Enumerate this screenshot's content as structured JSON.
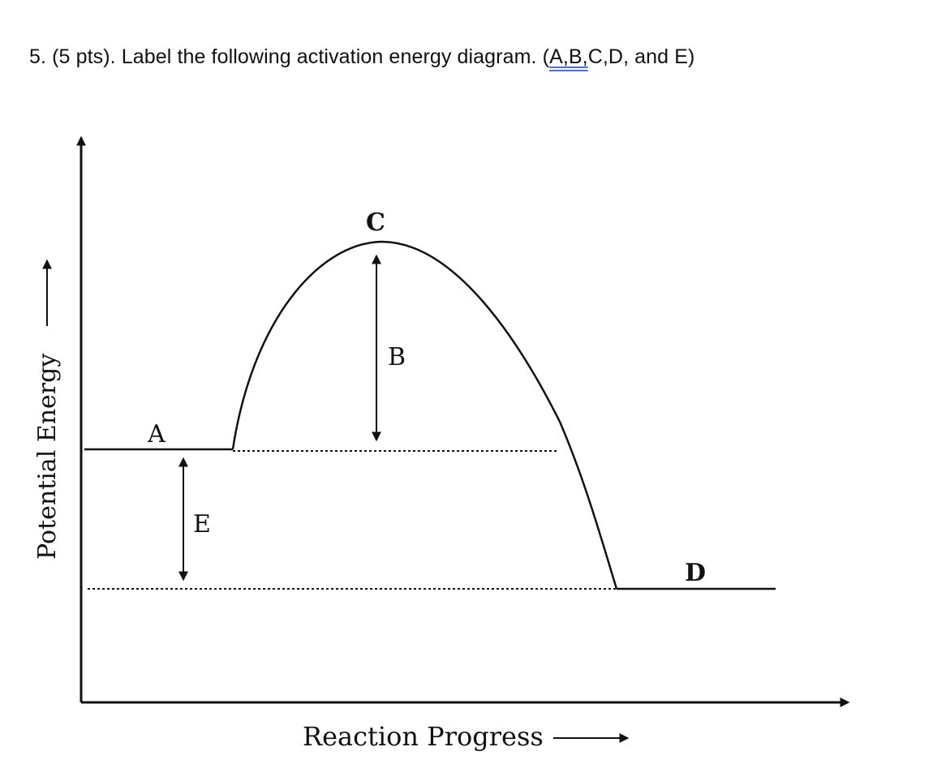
{
  "question": {
    "text_prefix": "5. (5 pts). Label the following activation energy diagram. (",
    "text_underlined": "A,B,",
    "text_suffix": "C,D, and E)"
  },
  "diagram": {
    "y_axis_label": "Potential Energy",
    "x_axis_label": "Reaction Progress",
    "labels": {
      "A": "A",
      "B": "B",
      "C": "C",
      "D": "D",
      "E": "E"
    },
    "colors": {
      "ink": "#111111",
      "underline": "#4a6fd8"
    }
  }
}
